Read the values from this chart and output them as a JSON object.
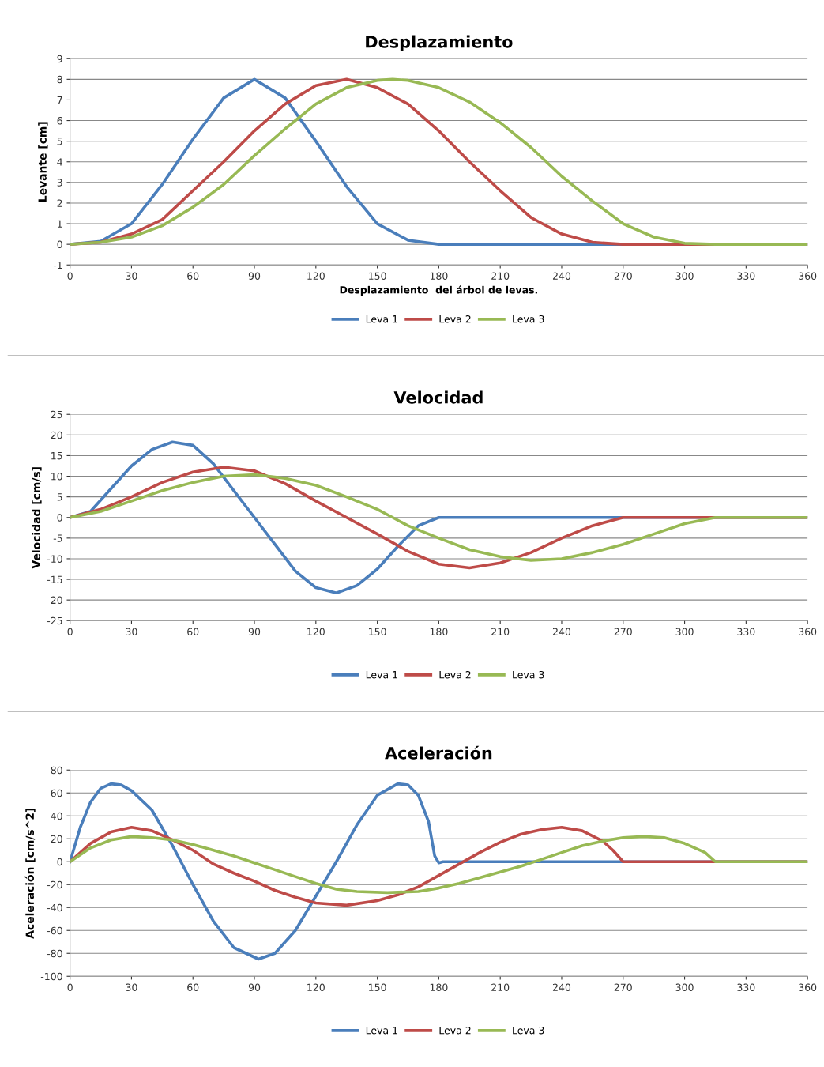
{
  "chart_data": [
    {
      "type": "line",
      "title": "Desplazamiento",
      "xlabel": "Desplazamiento  del árbol de levas.",
      "ylabel": "Levante [cm]",
      "xlim": [
        0,
        360
      ],
      "xticks": [
        0,
        30,
        60,
        90,
        120,
        150,
        180,
        210,
        240,
        270,
        300,
        330,
        360
      ],
      "ylim": [
        -1,
        9
      ],
      "yticks": [
        -1,
        0,
        1,
        2,
        3,
        4,
        5,
        6,
        7,
        8,
        9
      ],
      "grid": "y",
      "legend": "bottom",
      "series": [
        {
          "name": "Leva 1",
          "color": "#4a7ebb",
          "x": [
            0,
            15,
            30,
            45,
            60,
            75,
            90,
            105,
            120,
            135,
            150,
            165,
            180,
            360
          ],
          "values": [
            0,
            0.15,
            1.0,
            2.9,
            5.1,
            7.1,
            8.0,
            7.1,
            5.0,
            2.8,
            1.0,
            0.2,
            0,
            0
          ]
        },
        {
          "name": "Leva 2",
          "color": "#be4b48",
          "x": [
            0,
            15,
            30,
            45,
            60,
            75,
            90,
            105,
            120,
            135,
            150,
            165,
            180,
            195,
            210,
            225,
            240,
            255,
            270,
            360
          ],
          "values": [
            0,
            0.1,
            0.5,
            1.2,
            2.6,
            4.0,
            5.5,
            6.8,
            7.7,
            8.0,
            7.6,
            6.8,
            5.5,
            4.0,
            2.6,
            1.3,
            0.5,
            0.1,
            0,
            0
          ]
        },
        {
          "name": "Leva 3",
          "color": "#98b954",
          "x": [
            0,
            15,
            30,
            45,
            60,
            75,
            90,
            105,
            120,
            135,
            150,
            157.5,
            165,
            180,
            195,
            210,
            225,
            240,
            255,
            270,
            285,
            300,
            315,
            360
          ],
          "values": [
            0,
            0.1,
            0.35,
            0.9,
            1.8,
            2.9,
            4.3,
            5.6,
            6.8,
            7.6,
            7.95,
            8.0,
            7.95,
            7.6,
            6.9,
            5.9,
            4.7,
            3.3,
            2.1,
            1.0,
            0.35,
            0.05,
            0,
            0
          ]
        }
      ]
    },
    {
      "type": "line",
      "title": "Velocidad",
      "ylabel": "Velocidad [cm/s]",
      "xlim": [
        0,
        360
      ],
      "xticks": [
        0,
        30,
        60,
        90,
        120,
        150,
        180,
        210,
        240,
        270,
        300,
        330,
        360
      ],
      "ylim": [
        -25,
        25
      ],
      "yticks": [
        -25,
        -20,
        -15,
        -10,
        -5,
        0,
        5,
        10,
        15,
        20,
        25
      ],
      "grid": "y",
      "legend": "bottom",
      "series": [
        {
          "name": "Leva 1",
          "color": "#4a7ebb",
          "x": [
            0,
            10,
            20,
            30,
            40,
            50,
            60,
            70,
            80,
            90,
            100,
            110,
            120,
            130,
            140,
            150,
            160,
            170,
            180,
            360
          ],
          "values": [
            0,
            1.5,
            7,
            12.5,
            16.5,
            18.3,
            17.5,
            13,
            6.5,
            0,
            -6.5,
            -13,
            -17,
            -18.3,
            -16.5,
            -12.5,
            -7,
            -2,
            0,
            0
          ]
        },
        {
          "name": "Leva 2",
          "color": "#be4b48",
          "x": [
            0,
            15,
            30,
            45,
            60,
            75,
            90,
            105,
            120,
            135,
            150,
            165,
            180,
            195,
            210,
            225,
            240,
            255,
            270,
            360
          ],
          "values": [
            0,
            2,
            5,
            8.5,
            11,
            12.2,
            11.3,
            8.2,
            4,
            0,
            -4,
            -8.2,
            -11.3,
            -12.2,
            -11,
            -8.5,
            -5,
            -2,
            0,
            0
          ]
        },
        {
          "name": "Leva 3",
          "color": "#98b954",
          "x": [
            0,
            15,
            30,
            45,
            60,
            75,
            90,
            105,
            120,
            135,
            150,
            157.5,
            165,
            180,
            195,
            210,
            225,
            240,
            255,
            270,
            285,
            300,
            315,
            360
          ],
          "values": [
            0,
            1.5,
            4,
            6.5,
            8.5,
            10,
            10.4,
            9.5,
            7.8,
            5,
            2,
            0,
            -2,
            -5,
            -7.8,
            -9.5,
            -10.4,
            -10,
            -8.5,
            -6.5,
            -4,
            -1.5,
            0,
            0
          ]
        }
      ]
    },
    {
      "type": "line",
      "title": "Aceleración",
      "ylabel": "Aceleración [cm/s^2]",
      "xlim": [
        0,
        360
      ],
      "xticks": [
        0,
        30,
        60,
        90,
        120,
        150,
        180,
        210,
        240,
        270,
        300,
        330,
        360
      ],
      "ylim": [
        -100,
        80
      ],
      "yticks": [
        -100,
        -80,
        -60,
        -40,
        -20,
        0,
        20,
        40,
        60,
        80
      ],
      "grid": "y",
      "legend": "bottom",
      "series": [
        {
          "name": "Leva 1",
          "color": "#4a7ebb",
          "x": [
            0,
            5,
            10,
            15,
            20,
            25,
            30,
            40,
            50,
            60,
            70,
            80,
            92,
            100,
            110,
            120,
            130,
            140,
            150,
            160,
            165,
            170,
            175,
            178,
            180,
            182,
            360
          ],
          "values": [
            0,
            30,
            52,
            64,
            68,
            67,
            62,
            45,
            14,
            -20,
            -52,
            -75,
            -85,
            -80,
            -60,
            -30,
            0,
            32,
            58,
            68,
            67,
            58,
            35,
            5,
            -1,
            0,
            0
          ]
        },
        {
          "name": "Leva 2",
          "color": "#be4b48",
          "x": [
            0,
            10,
            20,
            30,
            40,
            50,
            60,
            70,
            80,
            90,
            100,
            110,
            120,
            135,
            150,
            160,
            170,
            180,
            190,
            200,
            210,
            220,
            230,
            240,
            250,
            260,
            265,
            270,
            360
          ],
          "values": [
            0,
            16,
            26,
            30,
            27,
            19,
            10,
            -2,
            -10,
            -17,
            -25,
            -31,
            -36,
            -38,
            -34,
            -29,
            -22,
            -12,
            -2,
            8,
            17,
            24,
            28,
            30,
            27,
            18,
            10,
            0,
            0
          ]
        },
        {
          "name": "Leva 3",
          "color": "#98b954",
          "x": [
            0,
            10,
            20,
            30,
            40,
            50,
            60,
            70,
            80,
            90,
            100,
            110,
            120,
            130,
            140,
            155,
            170,
            180,
            190,
            200,
            210,
            220,
            230,
            240,
            250,
            260,
            270,
            280,
            290,
            300,
            310,
            315,
            360
          ],
          "values": [
            0,
            12,
            19,
            22,
            21,
            19,
            15,
            10,
            5,
            -1,
            -7,
            -13,
            -19,
            -24,
            -26,
            -27,
            -26,
            -23,
            -19,
            -14,
            -9,
            -4,
            2,
            8,
            14,
            18,
            21,
            22,
            21,
            16,
            8,
            0,
            0
          ]
        }
      ]
    }
  ]
}
